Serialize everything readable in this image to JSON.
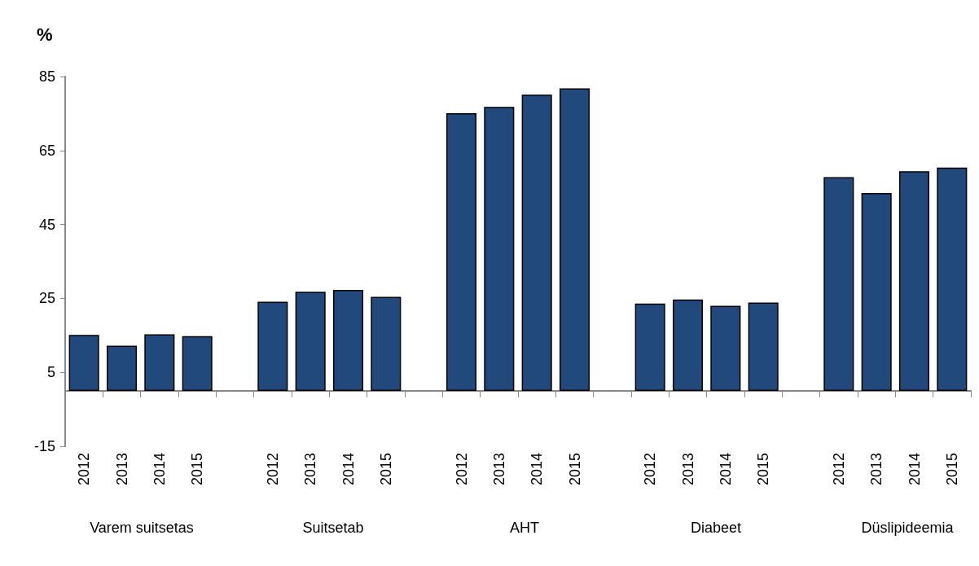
{
  "chart_data": {
    "type": "bar",
    "ylabel": "%",
    "categories": [
      "2012",
      "2013",
      "2014",
      "2015",
      null,
      "2012",
      "2013",
      "2014",
      "2015",
      null,
      "2012",
      "2013",
      "2014",
      "2015",
      null,
      "2012",
      "2013",
      "2014",
      "2015",
      null,
      "2012",
      "2013",
      "2014",
      "2015"
    ],
    "values": [
      15.1,
      12.2,
      15.3,
      14.8,
      null,
      24.1,
      26.8,
      27.3,
      25.4,
      null,
      75.1,
      76.8,
      80.1,
      81.8,
      null,
      23.6,
      24.7,
      23.0,
      23.9,
      null,
      57.8,
      53.5,
      59.4,
      60.4
    ],
    "color": "#21497c",
    "ylim": [
      -15,
      85
    ],
    "yticks": [
      -15,
      5,
      25,
      45,
      65,
      85
    ],
    "grid": false,
    "annotations": [
      "Varem suitsetas",
      "Suitsetab",
      "AHT",
      "Diabeet",
      "Düslipideemia"
    ]
  }
}
